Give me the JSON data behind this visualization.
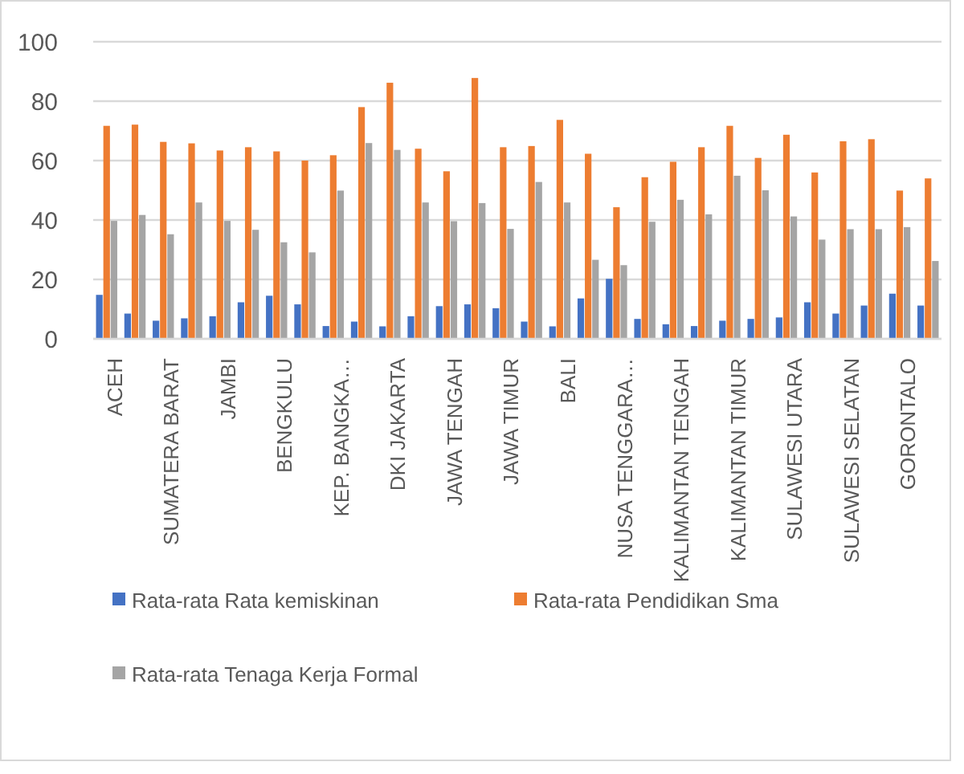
{
  "chart_data": {
    "type": "bar",
    "categories": [
      "ACEH",
      null,
      "SUMATERA BARAT",
      null,
      "JAMBI",
      null,
      "BENGKULU",
      null,
      "KEP. BANGKA…",
      null,
      "DKI JAKARTA",
      null,
      "JAWA TENGAH",
      null,
      "JAWA TIMUR",
      null,
      "BALI",
      null,
      "NUSA TENGGARA…",
      null,
      "KALIMANTAN TENGAH",
      null,
      "KALIMANTAN TIMUR",
      null,
      "SULAWESI UTARA",
      null,
      "SULAWESI SELATAN",
      null,
      "GORONTALO",
      null
    ],
    "series": [
      {
        "name": "Rata-rata Rata kemiskinan",
        "color": "#4472c4",
        "values": [
          14.8,
          8.5,
          6.1,
          6.9,
          7.6,
          12.3,
          14.5,
          11.6,
          4.3,
          5.8,
          4.2,
          7.6,
          11,
          11.6,
          10.3,
          5.8,
          4.2,
          13.6,
          20.2,
          6.7,
          4.9,
          4.3,
          6.1,
          6.7,
          7.2,
          12.3,
          8.5,
          11.2,
          15.2,
          11.2
        ]
      },
      {
        "name": "Rata-rata Pendidikan Sma",
        "color": "#ed7d31",
        "values": [
          71.7,
          72.1,
          66.3,
          65.8,
          63.4,
          64.5,
          63.1,
          60,
          61.8,
          78,
          86.2,
          64,
          56.4,
          87.8,
          64.5,
          64.9,
          73.7,
          62.3,
          44.3,
          54.4,
          59.6,
          64.5,
          71.7,
          60.9,
          68.7,
          56,
          66.5,
          67.2,
          49.9,
          54
        ]
      },
      {
        "name": "Rata-rata Tenaga Kerja Formal",
        "color": "#a5a5a5",
        "values": [
          39.7,
          41.7,
          35.2,
          45.9,
          39.7,
          36.7,
          32.5,
          29.1,
          49.9,
          65.9,
          63.6,
          45.9,
          39.6,
          45.7,
          37,
          52.8,
          45.9,
          26.6,
          24.8,
          39.4,
          46.8,
          41.9,
          54.9,
          50,
          41.2,
          33.4,
          36.9,
          36.9,
          37.6,
          26.2
        ]
      }
    ],
    "ylim": [
      0,
      100
    ],
    "yticks": [
      0,
      20,
      40,
      60,
      80,
      100
    ],
    "grid": "y",
    "legend": "bottom"
  }
}
